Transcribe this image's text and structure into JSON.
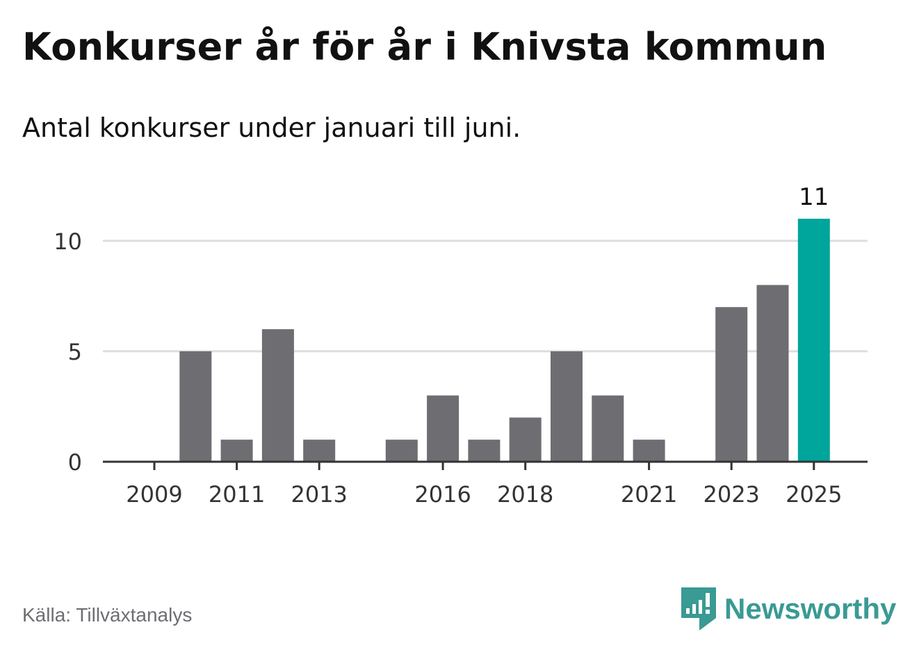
{
  "title": "Konkurser år för år i Knivsta kommun",
  "subtitle": "Antal konkurser under januari till juni.",
  "source": "Källa: Tillväxtanalys",
  "brand": {
    "name": "Newsworthy",
    "icon": "newsworthy-logo-icon",
    "color": "#3a9a94"
  },
  "colors": {
    "bar": "#6e6d72",
    "highlight": "#00a59b",
    "grid": "#dddddd",
    "axis": "#333333"
  },
  "chart_data": {
    "type": "bar",
    "categories": [
      "2009",
      "2010",
      "2011",
      "2012",
      "2013",
      "2014",
      "2015",
      "2016",
      "2017",
      "2018",
      "2019",
      "2020",
      "2021",
      "2022",
      "2023",
      "2024",
      "2025"
    ],
    "values": [
      0,
      5,
      1,
      6,
      1,
      0,
      1,
      3,
      1,
      2,
      5,
      3,
      1,
      0,
      7,
      8,
      11
    ],
    "x_tick_labels": [
      "2009",
      "2011",
      "2013",
      "2016",
      "2018",
      "2021",
      "2023",
      "2025"
    ],
    "y_ticks": [
      0,
      5,
      10
    ],
    "ylim": [
      0,
      11
    ],
    "highlight": "2025",
    "data_labels": [
      {
        "category": "2025",
        "text": "11"
      }
    ],
    "grid": true,
    "legend": "none"
  }
}
